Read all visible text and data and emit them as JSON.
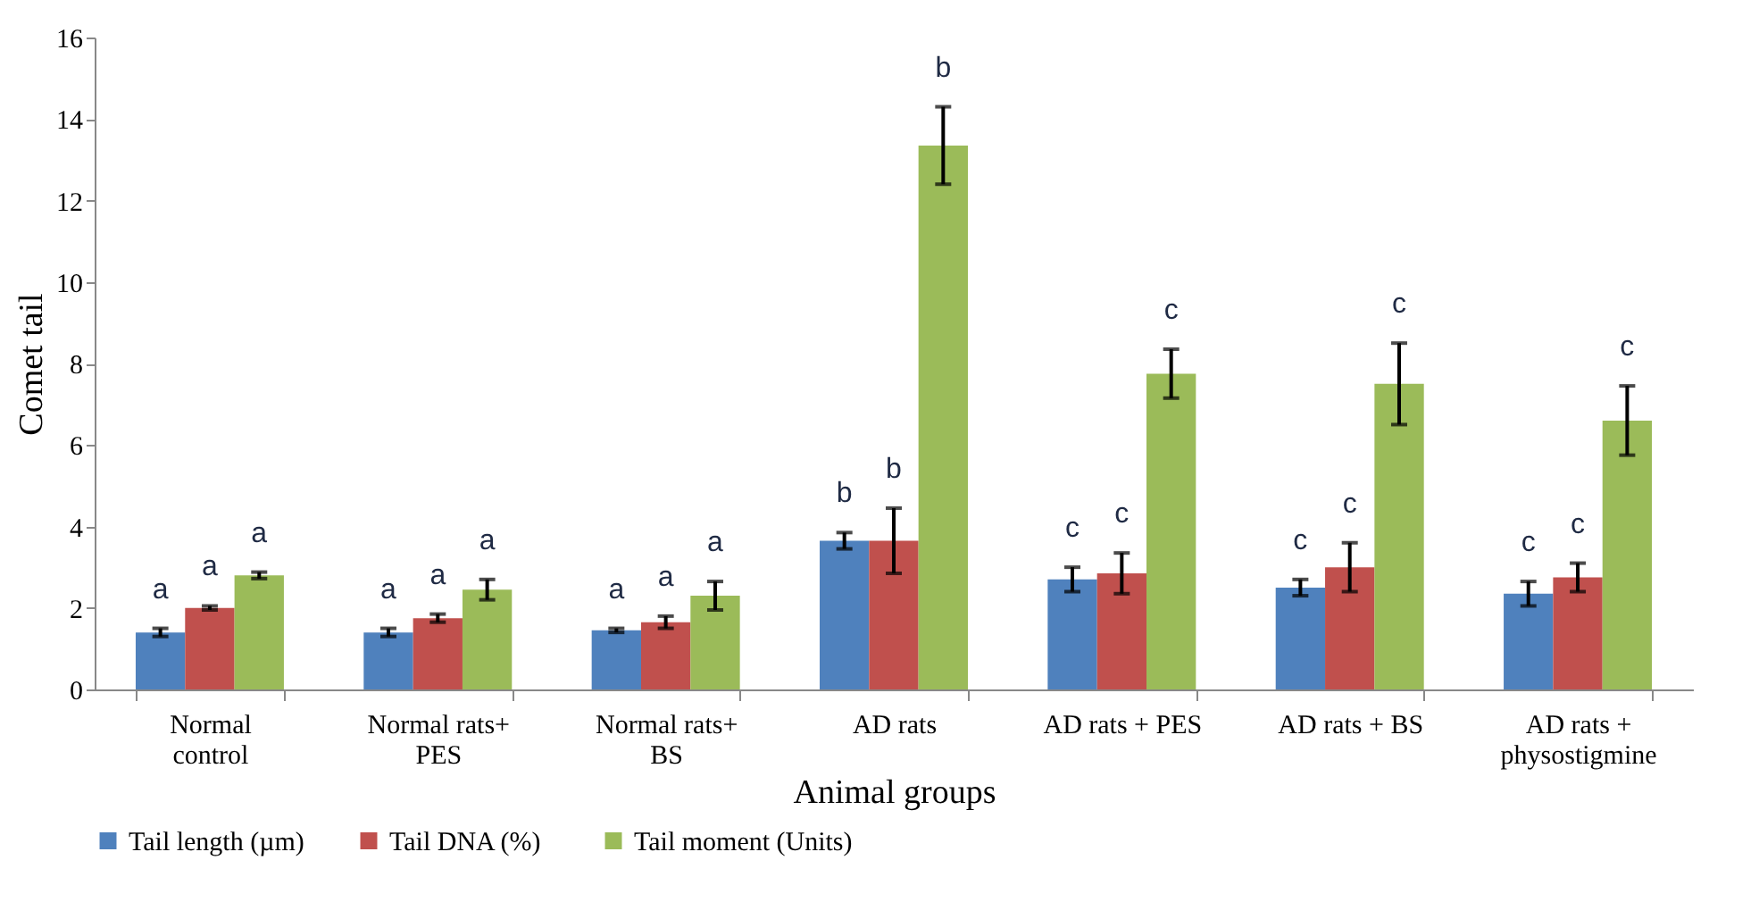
{
  "chart_data": {
    "type": "bar",
    "xlabel": "Animal groups",
    "ylabel": "Comet tail",
    "categories": [
      "Normal control",
      "Normal rats+ PES",
      "Normal rats+ BS",
      "AD rats",
      "AD rats + PES",
      "AD rats + BS",
      "AD rats + physostigmine"
    ],
    "series": [
      {
        "name": "Tail length (µm)",
        "color": "#4f81bd",
        "values": [
          1.4,
          1.4,
          1.45,
          3.65,
          2.7,
          2.5,
          2.35
        ],
        "errors": [
          0.1,
          0.1,
          0.05,
          0.2,
          0.3,
          0.2,
          0.3
        ]
      },
      {
        "name": "Tail DNA  (%)",
        "color": "#c0504d",
        "values": [
          2.0,
          1.75,
          1.65,
          3.65,
          2.85,
          3.0,
          2.75
        ],
        "errors": [
          0.05,
          0.1,
          0.15,
          0.8,
          0.5,
          0.6,
          0.35
        ]
      },
      {
        "name": "Tail moment (Units)",
        "color": "#9bbb59",
        "values": [
          2.8,
          2.45,
          2.3,
          13.35,
          7.75,
          7.5,
          6.6
        ],
        "errors": [
          0.08,
          0.25,
          0.35,
          0.95,
          0.6,
          1.0,
          0.85
        ]
      }
    ],
    "ylim": [
      0,
      16
    ],
    "yticks": [
      0,
      2,
      4,
      6,
      8,
      10,
      12,
      14,
      16
    ],
    "grid": false,
    "legend": "bottom",
    "annotations": [
      "a",
      "a",
      "a",
      "a",
      "a",
      "a",
      "a",
      "a",
      "a",
      "b",
      "b",
      "b",
      "c",
      "c",
      "c",
      "c",
      "c",
      "c",
      "c",
      "c",
      "c"
    ]
  }
}
